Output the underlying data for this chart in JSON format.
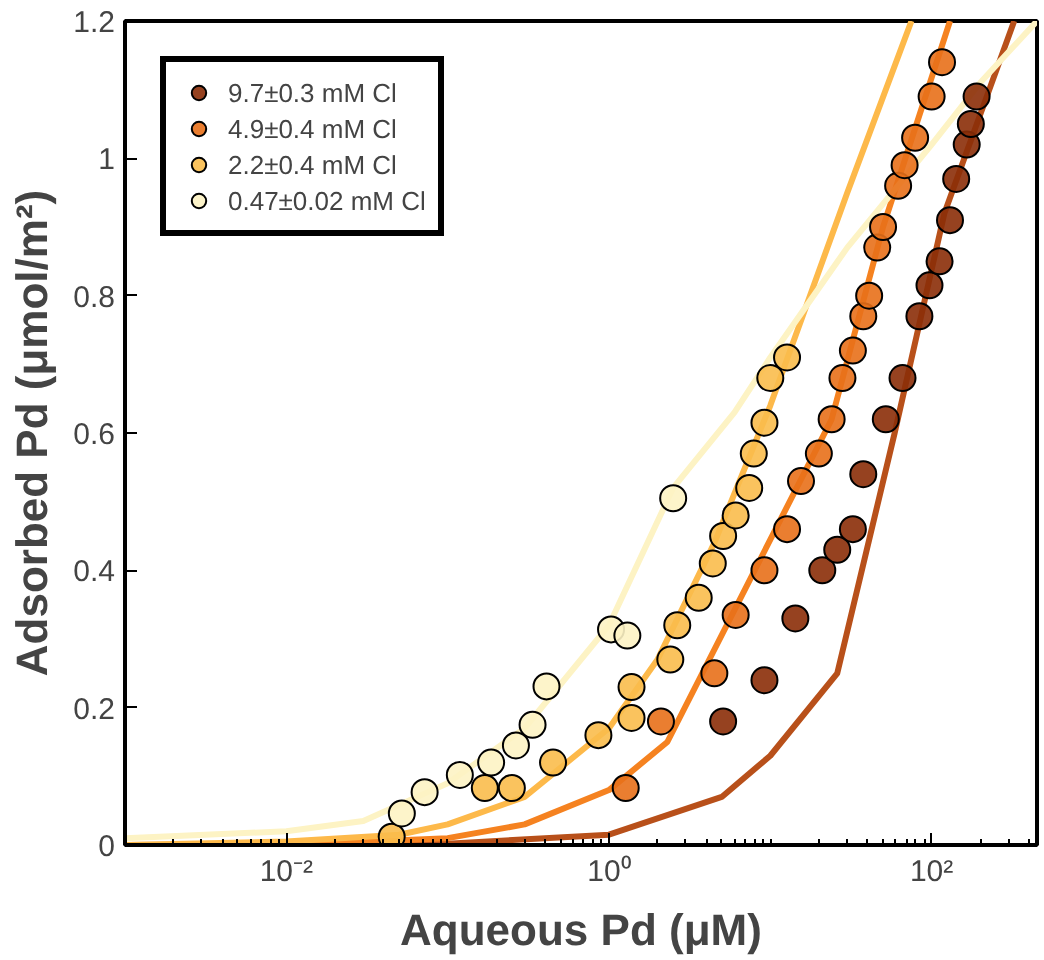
{
  "chart_data": {
    "type": "scatter",
    "xlabel": "Aqueous Pd (μM)",
    "ylabel": "Adsorbed Pd (μmol/m²)",
    "log": "x",
    "xlim": [
      0.001,
      450
    ],
    "ylim": [
      0,
      1.2
    ],
    "xticks": [
      {
        "value": 0.01,
        "label": "10⁻²"
      },
      {
        "value": 1,
        "label": "10⁰"
      },
      {
        "value": 100,
        "label": "10²"
      }
    ],
    "yticks": [
      0,
      0.2,
      0.4,
      0.6,
      0.8,
      1,
      1.2
    ],
    "grid": false,
    "legend": "top left",
    "marker": "circle",
    "series": [
      {
        "name": "9.7±0.3 mM Cl",
        "color": "#8b2e08",
        "x": [
          5.1,
          9.2,
          14.3,
          21,
          26,
          32.5,
          37.7,
          52,
          66,
          84,
          97,
          112,
          130,
          142,
          165,
          175,
          190
        ],
        "values": [
          0.18,
          0.24,
          0.33,
          0.4,
          0.43,
          0.46,
          0.54,
          0.62,
          0.68,
          0.77,
          0.815,
          0.85,
          0.91,
          0.97,
          1.02,
          1.05,
          1.09
        ]
      },
      {
        "name": "4.9±0.4 mM Cl",
        "color": "#e8701a",
        "x": [
          1.27,
          2.1,
          4.5,
          6.1,
          9.2,
          12.7,
          15.5,
          20,
          24,
          28,
          32.5,
          37.7,
          41,
          46,
          50,
          62,
          68,
          79,
          100,
          116
        ],
        "values": [
          0.083,
          0.18,
          0.25,
          0.335,
          0.4,
          0.46,
          0.53,
          0.57,
          0.62,
          0.68,
          0.72,
          0.77,
          0.8,
          0.87,
          0.9,
          0.96,
          0.99,
          1.03,
          1.09,
          1.14
        ]
      },
      {
        "name": "2.2±0.4 mM Cl",
        "color": "#f9bd4c",
        "x": [
          0.045,
          0.17,
          0.25,
          0.45,
          0.86,
          1.38,
          1.38,
          2.4,
          2.65,
          3.6,
          4.4,
          5.1,
          6.1,
          7.4,
          7.9,
          9.2,
          10,
          12.7
        ],
        "values": [
          0.012,
          0.083,
          0.083,
          0.12,
          0.16,
          0.185,
          0.23,
          0.27,
          0.32,
          0.36,
          0.41,
          0.45,
          0.48,
          0.52,
          0.57,
          0.615,
          0.68,
          0.71
        ]
      },
      {
        "name": "0.47±0.02 mM Cl",
        "color": "#fdf3c4",
        "x": [
          0.052,
          0.072,
          0.119,
          0.186,
          0.265,
          0.336,
          0.41,
          1.03,
          1.3,
          2.5
        ],
        "values": [
          0.046,
          0.077,
          0.102,
          0.12,
          0.145,
          0.175,
          0.231,
          0.314,
          0.305,
          0.505
        ]
      },
      {
        "type": "line",
        "marker": "none",
        "color": "#b8501a",
        "x": [
          0.001,
          0.1,
          1,
          5,
          10,
          26,
          59,
          120,
          325
        ],
        "values": [
          0,
          0.002,
          0.015,
          0.07,
          0.13,
          0.25,
          0.6,
          0.92,
          1.2
        ]
      },
      {
        "type": "line",
        "marker": "none",
        "color": "#f58220",
        "x": [
          0.001,
          0.01,
          0.1,
          0.3,
          1,
          2.3,
          8,
          24,
          50,
          130
        ],
        "values": [
          0,
          0,
          0.01,
          0.03,
          0.08,
          0.15,
          0.4,
          0.62,
          0.9,
          1.2
        ]
      },
      {
        "type": "line",
        "marker": "none",
        "color": "#fdb94a",
        "x": [
          0.001,
          0.01,
          0.05,
          0.1,
          0.3,
          1,
          2,
          4.5,
          10,
          30,
          75
        ],
        "values": [
          0,
          0.005,
          0.015,
          0.03,
          0.07,
          0.17,
          0.27,
          0.44,
          0.64,
          0.95,
          1.2
        ]
      },
      {
        "type": "line",
        "marker": "none",
        "color": "#fdf3c4",
        "x": [
          0.001,
          0.01,
          0.03,
          0.1,
          0.3,
          1,
          2.5,
          6,
          10,
          30,
          100,
          200,
          450
        ],
        "values": [
          0.01,
          0.02,
          0.035,
          0.09,
          0.17,
          0.32,
          0.52,
          0.63,
          0.71,
          0.87,
          1.02,
          1.11,
          1.2
        ]
      }
    ]
  }
}
